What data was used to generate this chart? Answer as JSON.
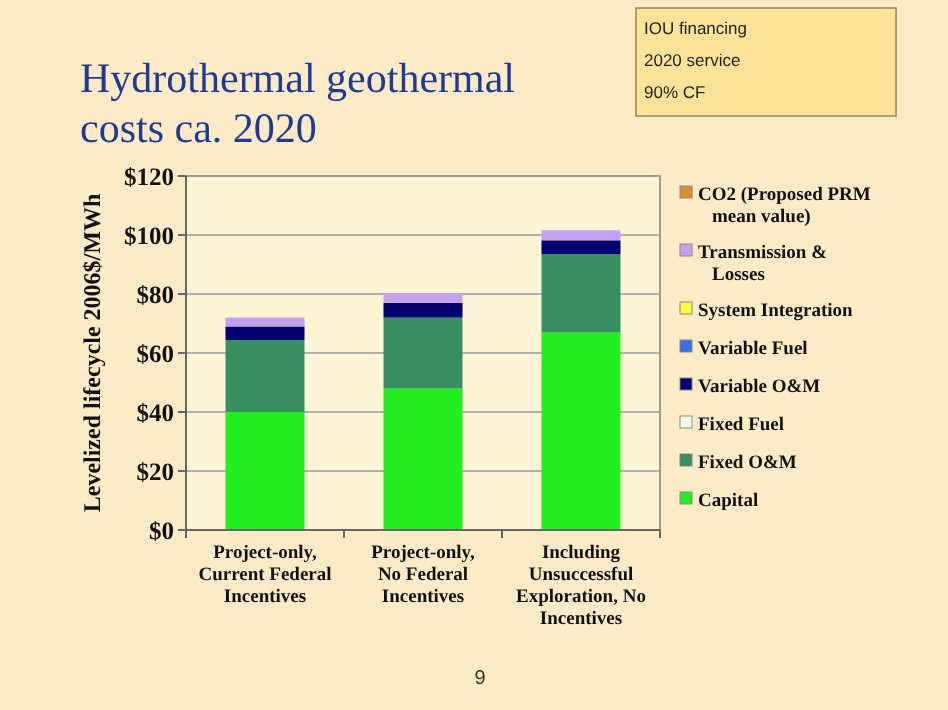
{
  "chart_data": {
    "type": "bar",
    "stacked": true,
    "title": "Hydrothermal geothermal costs ca. 2020",
    "ylabel": "Levelized lifecycle 2006$/MWh",
    "categories": [
      "Project-only, Current Federal Incentives",
      "Project-only, No Federal Incentives",
      "Including Unsuccessful Exploration, No Incentives"
    ],
    "series": [
      {
        "name": "Capital",
        "color": "#22ee22",
        "values": [
          40,
          48,
          67
        ]
      },
      {
        "name": "Fixed O&M",
        "color": "#3a8f60",
        "values": [
          24.4,
          24,
          26.5
        ]
      },
      {
        "name": "Fixed Fuel",
        "color": "#e8ffe8",
        "values": [
          0,
          0,
          0
        ]
      },
      {
        "name": "Variable O&M",
        "color": "#000070",
        "values": [
          4.6,
          5,
          4.7
        ]
      },
      {
        "name": "Variable Fuel",
        "color": "#3b6fe0",
        "values": [
          0,
          0,
          0
        ]
      },
      {
        "name": "System Integration",
        "color": "#ffff40",
        "values": [
          0,
          0,
          0
        ]
      },
      {
        "name": "Transmission & Losses",
        "color": "#c8a0f0",
        "values": [
          3,
          3.2,
          3.4
        ]
      },
      {
        "name": "CO2 (Proposed PRM mean value)",
        "color": "#e0902a",
        "values": [
          0,
          0,
          0
        ]
      }
    ],
    "ylim": [
      0,
      120
    ],
    "yticks": [
      {
        "value": 0,
        "label": "$0"
      },
      {
        "value": 20,
        "label": "$20"
      },
      {
        "value": 40,
        "label": "$40"
      },
      {
        "value": 60,
        "label": "$60"
      },
      {
        "value": 80,
        "label": "$80"
      },
      {
        "value": 100,
        "label": "$100"
      },
      {
        "value": 120,
        "label": "$120"
      }
    ],
    "grid": "y",
    "legend": "right",
    "annotations": [
      "IOU financing",
      "2020 service",
      "90% CF",
      "9"
    ]
  }
}
